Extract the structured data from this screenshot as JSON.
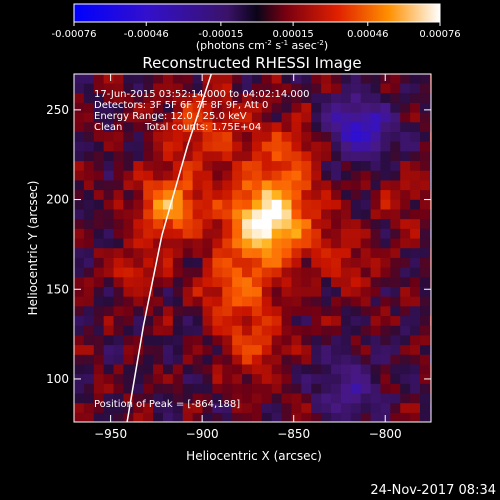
{
  "chart_data": {
    "type": "heatmap",
    "title": "Reconstructed RHESSI Image",
    "xlabel": "Heliocentric X (arcsec)",
    "ylabel": "Heliocentric Y (arcsec)",
    "xlim": [
      -970,
      -775
    ],
    "ylim": [
      76,
      270
    ],
    "xticks": [
      -950,
      -900,
      -850,
      -800
    ],
    "yticks": [
      100,
      150,
      200,
      250
    ],
    "colorbar": {
      "range": [
        -0.00076,
        0.00076
      ],
      "ticks": [
        "-0.00076",
        "-0.00046",
        "-0.00015",
        "0.00015",
        "0.00046",
        "0.00076"
      ],
      "unit_label": [
        "(photons cm",
        "-2",
        " s",
        "-1",
        " asec",
        "-2",
        ")"
      ]
    },
    "annotations": {
      "time_range": "17-Jun-2015 03:52:14.000 to 04:02:14.000",
      "detectors": "Detectors: 3F 5F 6F 7F 8F 9F, Att 0",
      "energy": "Energy Range: 12.0 - 25.0 keV",
      "method": "Clean",
      "total_counts": "Total counts: 1.75E+04",
      "peak": "Position of Peak = [-864,188]"
    },
    "peak_position": [
      -864,
      188
    ],
    "limb_curve": [
      [
        -941,
        76
      ],
      [
        -932,
        130
      ],
      [
        -922,
        180
      ],
      [
        -908,
        230
      ],
      [
        -895,
        270
      ]
    ],
    "sources": [
      {
        "x": -864,
        "y": 188,
        "sigma": 16,
        "amp": 0.00076
      },
      {
        "x": -918,
        "y": 197,
        "sigma": 12,
        "amp": 0.00052
      },
      {
        "x": -880,
        "y": 150,
        "sigma": 14,
        "amp": 0.00034
      },
      {
        "x": -872,
        "y": 118,
        "sigma": 12,
        "amp": 0.00026
      },
      {
        "x": -900,
        "y": 240,
        "sigma": 16,
        "amp": 0.00028
      },
      {
        "x": -855,
        "y": 225,
        "sigma": 15,
        "amp": 0.00024
      },
      {
        "x": -935,
        "y": 160,
        "sigma": 11,
        "amp": 0.0002
      },
      {
        "x": -820,
        "y": 165,
        "sigma": 13,
        "amp": 0.00016
      },
      {
        "x": -790,
        "y": 200,
        "sigma": 10,
        "amp": 0.00014
      },
      {
        "x": -815,
        "y": 240,
        "sigma": 12,
        "amp": -0.0005
      },
      {
        "x": -820,
        "y": 95,
        "sigma": 12,
        "amp": -0.00026
      }
    ]
  },
  "footer": {
    "date": "24-Nov-2017 08:34"
  }
}
